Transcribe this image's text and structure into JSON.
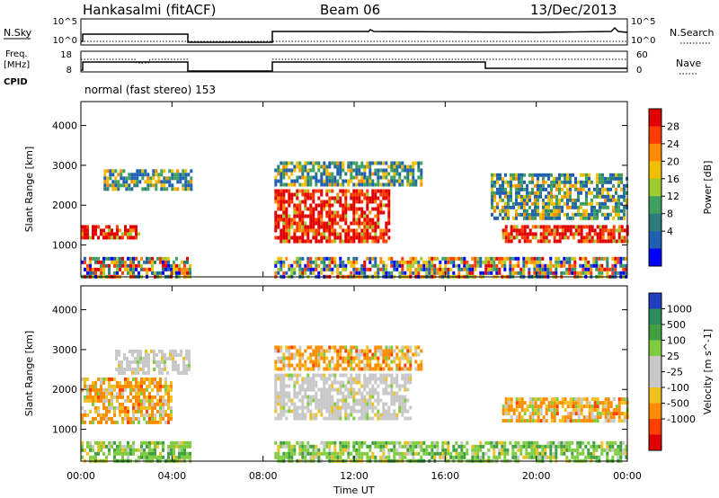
{
  "header": {
    "station": "Hankasalmi (fitACF)",
    "beam": "Beam 06",
    "date": "13/Dec/2013"
  },
  "panels": {
    "nsky_label": "N.Sky",
    "nsky_ticks": [
      "10^5",
      "10^0"
    ],
    "nsky_right_ticks": [
      "10^5",
      "10^0"
    ],
    "nsearch_label": "N.Search",
    "freq_label": [
      "Freq.",
      "[MHz]"
    ],
    "freq_ticks": [
      "18",
      "8"
    ],
    "nave_ticks": [
      "60",
      "0"
    ],
    "nave_label": "Nave",
    "cpid_label": "CPID",
    "cpid_text": "normal (fast stereo) 153"
  },
  "chart_data": [
    {
      "type": "heatmap",
      "name_in_colorbar": "Power [dB]",
      "ylabel": "Slant Range [km]",
      "yticks": [
        1000,
        2000,
        3000,
        4000
      ],
      "ylim": [
        200,
        4600
      ],
      "xlim_hours": [
        0,
        24
      ],
      "colorbar": {
        "label": "Power [dB]",
        "ticks": [
          "28",
          "24",
          "20",
          "16",
          "12",
          "8",
          "4"
        ],
        "colors": [
          "#e00000",
          "#ff3c00",
          "#ff8c00",
          "#f0c000",
          "#9ccc30",
          "#40a060",
          "#2c7c7c",
          "#2060b0",
          "#0000ff"
        ]
      },
      "regions": [
        {
          "t": [
            0.0,
            4.8
          ],
          "r": [
            200,
            700
          ],
          "level": "mix"
        },
        {
          "t": [
            0.0,
            2.5
          ],
          "r": [
            1150,
            1500
          ],
          "level": "high"
        },
        {
          "t": [
            1.0,
            4.8
          ],
          "r": [
            2400,
            2900
          ],
          "level": "mid"
        },
        {
          "t": [
            8.5,
            13.5
          ],
          "r": [
            1100,
            2400
          ],
          "level": "high"
        },
        {
          "t": [
            8.5,
            15.0
          ],
          "r": [
            2500,
            3100
          ],
          "level": "mid"
        },
        {
          "t": [
            18.5,
            24.0
          ],
          "r": [
            1100,
            1500
          ],
          "level": "high"
        },
        {
          "t": [
            18.0,
            24.0
          ],
          "r": [
            1700,
            2800
          ],
          "level": "mid"
        },
        {
          "t": [
            8.5,
            24.0
          ],
          "r": [
            200,
            700
          ],
          "level": "mix"
        }
      ]
    },
    {
      "type": "heatmap",
      "ylabel": "Slant Range [km]",
      "yticks": [
        1000,
        2000,
        3000,
        4000
      ],
      "ylim": [
        200,
        4600
      ],
      "xlim_hours": [
        0,
        24
      ],
      "xticks": [
        "00:00",
        "04:00",
        "08:00",
        "12:00",
        "16:00",
        "20:00",
        "00:00"
      ],
      "xlabel": "Time UT",
      "colorbar": {
        "label": "Velocity [m s^-1]",
        "ticks": [
          "1000",
          "500",
          "100",
          "25",
          "-25",
          "-100",
          "-500",
          "-1000"
        ],
        "colors": [
          "#2040c0",
          "#2c8c5c",
          "#40a040",
          "#80cc40",
          "#c8c8c8",
          "#c8c8c8",
          "#f0c020",
          "#ff8c00",
          "#ff4000",
          "#e00000"
        ]
      },
      "regions": [
        {
          "t": [
            0.0,
            4.8
          ],
          "r": [
            200,
            700
          ],
          "level": "green"
        },
        {
          "t": [
            0.0,
            4.0
          ],
          "r": [
            1150,
            2300
          ],
          "level": "orange"
        },
        {
          "t": [
            1.5,
            4.8
          ],
          "r": [
            2400,
            3000
          ],
          "level": "grey"
        },
        {
          "t": [
            8.5,
            14.5
          ],
          "r": [
            1300,
            2400
          ],
          "level": "grey"
        },
        {
          "t": [
            8.5,
            15.0
          ],
          "r": [
            2500,
            3100
          ],
          "level": "orange"
        },
        {
          "t": [
            18.5,
            24.0
          ],
          "r": [
            1200,
            1800
          ],
          "level": "orange"
        },
        {
          "t": [
            8.5,
            24.0
          ],
          "r": [
            200,
            700
          ],
          "level": "green"
        }
      ]
    }
  ]
}
